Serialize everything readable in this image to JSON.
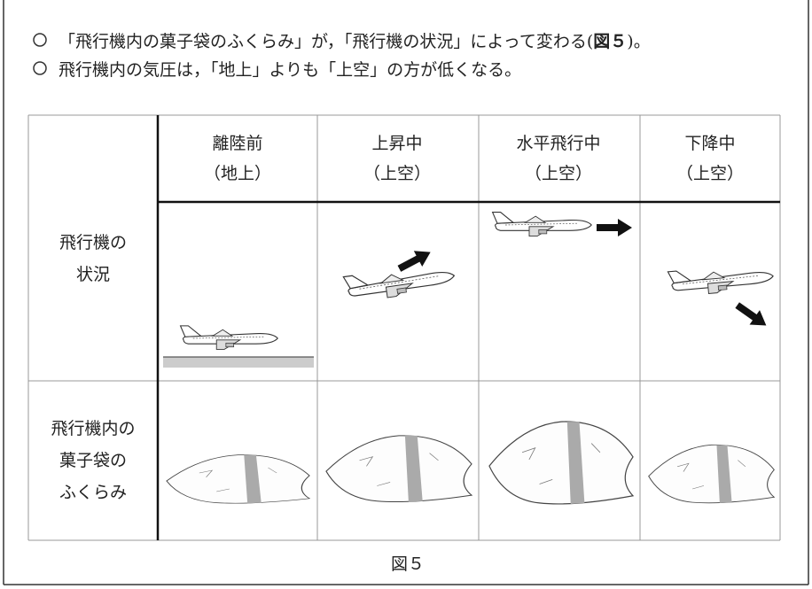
{
  "notes": [
    {
      "text": "「飛行機内の菓子袋のふくらみ」が，「飛行機の状況」によって変わる(",
      "ref": "図５",
      "end": ")。"
    },
    {
      "text": "飛行機内の気圧は，「地上」よりも「上空」の方が低くなる。"
    }
  ],
  "table": {
    "headers": [
      [
        "離陸前",
        "（地上）"
      ],
      [
        "上昇中",
        "（上空）"
      ],
      [
        "水平飛行中",
        "（上空）"
      ],
      [
        "下降中",
        "（上空）"
      ]
    ],
    "rows": [
      [
        "飛行機の",
        "状況"
      ],
      [
        "飛行機内の",
        "菓子袋の",
        "ふくらみ"
      ]
    ]
  },
  "caption": "図５"
}
